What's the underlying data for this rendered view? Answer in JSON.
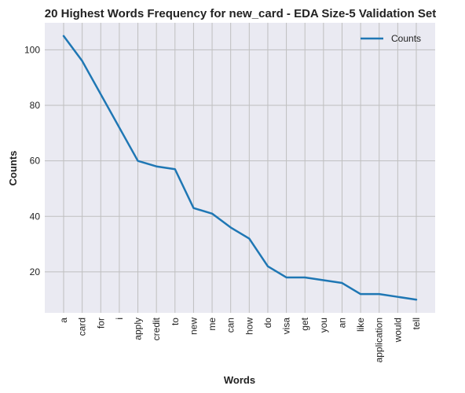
{
  "chart_data": {
    "type": "line",
    "title": "20 Highest Words Frequency for new_card - EDA Size-5 Validation Set",
    "xlabel": "Words",
    "ylabel": "Counts",
    "categories": [
      "a",
      "card",
      "for",
      "i",
      "apply",
      "credit",
      "to",
      "new",
      "me",
      "can",
      "how",
      "do",
      "visa",
      "get",
      "you",
      "an",
      "like",
      "application",
      "would",
      "tell"
    ],
    "series": [
      {
        "name": "Counts",
        "values": [
          105,
          96,
          84,
          72,
          60,
          58,
          57,
          43,
          41,
          36,
          32,
          22,
          18,
          18,
          17,
          16,
          12,
          12,
          11,
          10
        ],
        "color": "#1f77b4"
      }
    ],
    "yticks": [
      20,
      40,
      60,
      80,
      100
    ],
    "ylim": [
      5.25,
      109.75
    ],
    "grid": true,
    "legend": "top-right",
    "background": "#eaeaf2",
    "grid_color": "#bfbfbf"
  }
}
